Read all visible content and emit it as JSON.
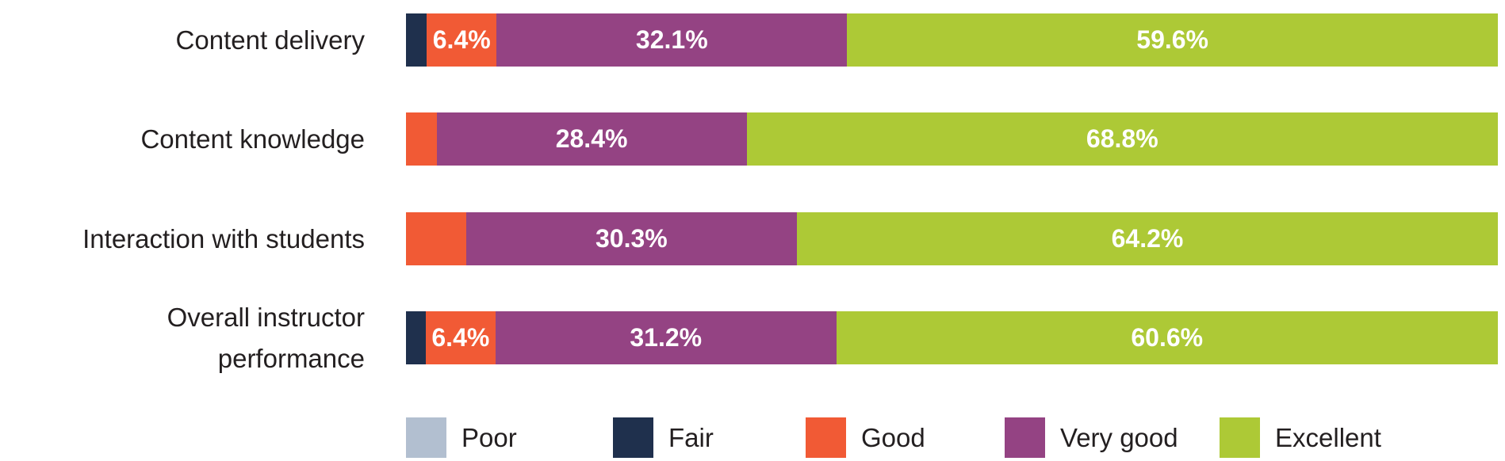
{
  "chart_data": {
    "type": "bar",
    "orientation": "horizontal",
    "stacked": true,
    "title": "",
    "xlabel": "",
    "ylabel": "",
    "xlim": [
      0,
      100
    ],
    "grid": false,
    "legend_position": "bottom",
    "categories": [
      "Content delivery",
      "Content knowledge",
      "Interaction with students",
      "Overall instructor performance"
    ],
    "series": [
      {
        "name": "Poor",
        "color": "#b2bfd0",
        "values": [
          0,
          0,
          0,
          0
        ]
      },
      {
        "name": "Fair",
        "color": "#1f304d",
        "values": [
          1.9,
          0,
          0,
          1.8
        ]
      },
      {
        "name": "Good",
        "color": "#f15a35",
        "values": [
          6.4,
          2.8,
          5.5,
          6.4
        ]
      },
      {
        "name": "Very good",
        "color": "#944383",
        "values": [
          32.1,
          28.4,
          30.3,
          31.2
        ]
      },
      {
        "name": "Excellent",
        "color": "#adc936",
        "values": [
          59.6,
          68.8,
          64.2,
          60.6
        ]
      }
    ],
    "data_labels": [
      {
        "category": "Content delivery",
        "Good": "6.4%",
        "Very good": "32.1%",
        "Excellent": "59.6%"
      },
      {
        "category": "Content knowledge",
        "Very good": "28.4%",
        "Excellent": "68.8%"
      },
      {
        "category": "Interaction with students",
        "Very good": "30.3%",
        "Excellent": "64.2%"
      },
      {
        "category": "Overall instructor performance",
        "Good": "6.4%",
        "Very good": "31.2%",
        "Excellent": "60.6%"
      }
    ]
  },
  "rows": [
    {
      "label_lines": [
        "Content delivery"
      ],
      "segments": [
        {
          "name": "Fair",
          "pct": 1.9,
          "label": ""
        },
        {
          "name": "Good",
          "pct": 6.4,
          "label": "6.4%"
        },
        {
          "name": "Very good",
          "pct": 32.1,
          "label": "32.1%"
        },
        {
          "name": "Excellent",
          "pct": 59.6,
          "label": "59.6%"
        }
      ]
    },
    {
      "label_lines": [
        "Content knowledge"
      ],
      "segments": [
        {
          "name": "Good",
          "pct": 2.8,
          "label": ""
        },
        {
          "name": "Very good",
          "pct": 28.4,
          "label": "28.4%"
        },
        {
          "name": "Excellent",
          "pct": 68.8,
          "label": "68.8%"
        }
      ]
    },
    {
      "label_lines": [
        "Interaction with students"
      ],
      "segments": [
        {
          "name": "Good",
          "pct": 5.5,
          "label": ""
        },
        {
          "name": "Very good",
          "pct": 30.3,
          "label": "30.3%"
        },
        {
          "name": "Excellent",
          "pct": 64.2,
          "label": "64.2%"
        }
      ]
    },
    {
      "label_lines": [
        "Overall instructor",
        "performance"
      ],
      "segments": [
        {
          "name": "Fair",
          "pct": 1.8,
          "label": ""
        },
        {
          "name": "Good",
          "pct": 6.4,
          "label": "6.4%"
        },
        {
          "name": "Very good",
          "pct": 31.2,
          "label": "31.2%"
        },
        {
          "name": "Excellent",
          "pct": 60.6,
          "label": "60.6%"
        }
      ]
    }
  ],
  "colors": {
    "Poor": "#b2bfd0",
    "Fair": "#1f304d",
    "Good": "#f15a35",
    "Very good": "#944383",
    "Excellent": "#adc936"
  },
  "legend": [
    {
      "label": "Poor",
      "color": "#b2bfd0"
    },
    {
      "label": "Fair",
      "color": "#1f304d"
    },
    {
      "label": "Good",
      "color": "#f15a35"
    },
    {
      "label": "Very good",
      "color": "#944383"
    },
    {
      "label": "Excellent",
      "color": "#adc936"
    }
  ]
}
